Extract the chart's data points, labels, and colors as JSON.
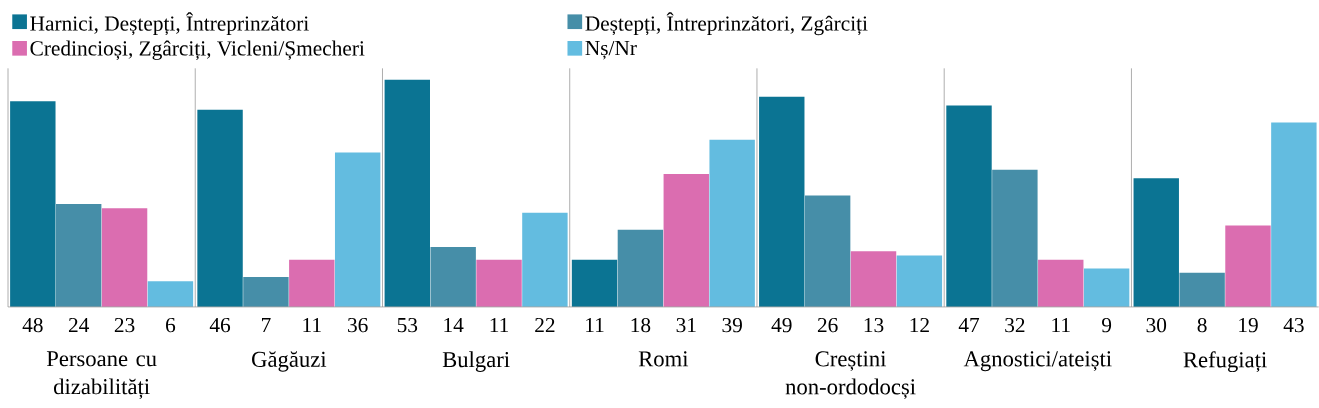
{
  "chart_data": {
    "type": "bar",
    "categories": [
      "Persoane cu dizabilități",
      "Găgăuzi",
      "Bulgari",
      "Romi",
      "Creștini non-ordodocși",
      "Agnostici/ateiști",
      "Refugiați"
    ],
    "series": [
      {
        "name": "Harnici, Deștepți, Întreprinzători",
        "color": "#0b7493",
        "values": [
          48,
          46,
          53,
          11,
          49,
          47,
          30
        ]
      },
      {
        "name": "Deștepți, Întreprinzători, Zgârciți",
        "color": "#468ea8",
        "values": [
          24,
          7,
          14,
          18,
          26,
          32,
          8
        ]
      },
      {
        "name": "Credincioși, Zgârciți, Vicleni/Șmecheri",
        "color": "#db6db0",
        "values": [
          23,
          11,
          11,
          31,
          13,
          11,
          19
        ]
      },
      {
        "name": "Nș/Nr",
        "color": "#63bce0",
        "values": [
          6,
          36,
          22,
          39,
          12,
          9,
          43
        ]
      }
    ],
    "data_labels": true,
    "legend": "top",
    "grid": "x"
  }
}
